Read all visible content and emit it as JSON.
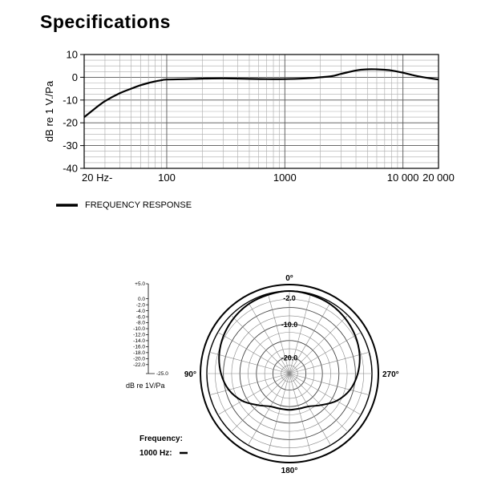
{
  "page": {
    "title": "Specifications"
  },
  "chart_data": [
    {
      "type": "line",
      "xscale": "log",
      "ylabel": "dB re 1 V./Pa",
      "ylim": [
        -40,
        10
      ],
      "xlim": [
        20,
        20000
      ],
      "yticks": [
        10,
        0,
        -10,
        -20,
        -30,
        -40
      ],
      "ytick_labels": [
        "10",
        "0",
        "-10",
        "-20",
        "-30",
        "-40"
      ],
      "xticks": [
        20,
        100,
        1000,
        10000,
        20000
      ],
      "xtick_labels": [
        "20 Hz-",
        "100",
        "1000",
        "10 000",
        "20 000"
      ],
      "grid": true,
      "series": [
        {
          "name": "FREQUENCY RESPONSE",
          "color": "#000000",
          "x": [
            20,
            25,
            30,
            40,
            50,
            60,
            70,
            80,
            90,
            100,
            150,
            200,
            300,
            500,
            700,
            1000,
            1500,
            2000,
            2500,
            3000,
            4000,
            5000,
            6000,
            7000,
            8000,
            10000,
            12000,
            15000,
            20000
          ],
          "y": [
            -17.5,
            -13.5,
            -10.5,
            -7.0,
            -5.0,
            -3.5,
            -2.5,
            -1.8,
            -1.3,
            -1.0,
            -0.8,
            -0.6,
            -0.5,
            -0.7,
            -0.8,
            -0.8,
            -0.5,
            0.0,
            0.5,
            1.5,
            3.0,
            3.5,
            3.5,
            3.3,
            3.0,
            2.0,
            1.0,
            0.0,
            -1.0
          ]
        }
      ]
    },
    {
      "type": "polar",
      "angle_labels": [
        "0°",
        "90°",
        "180°",
        "270°"
      ],
      "ring_labels": [
        "-2.0",
        "-10.0",
        "-20.0"
      ],
      "scale_labels": [
        "+5.0",
        "0.0",
        "-2.0",
        "-4.0",
        "-6.0",
        "-8.0",
        "-10.0",
        "-12.0",
        "-14.0",
        "-16.0",
        "-18.0",
        "-20.0",
        "-22.0",
        "-25.0"
      ],
      "scale_unit": "dB re 1V/Pa",
      "legend_title": "Frequency:",
      "series": [
        {
          "name": "1000 Hz:",
          "color": "#000000",
          "angle_deg": [
            0,
            15,
            30,
            45,
            60,
            75,
            90,
            105,
            120,
            135,
            150,
            165,
            180,
            195,
            210,
            225,
            240,
            255,
            270,
            285,
            300,
            315,
            330,
            345
          ],
          "level_db": [
            0.0,
            -0.3,
            -0.6,
            -1.2,
            -2.0,
            -3.0,
            -4.3,
            -6.0,
            -8.5,
            -11.5,
            -13.5,
            -14.0,
            -14.0,
            -14.0,
            -13.5,
            -11.5,
            -8.5,
            -6.0,
            -4.3,
            -3.0,
            -2.0,
            -1.2,
            -0.6,
            -0.3
          ]
        }
      ]
    }
  ]
}
